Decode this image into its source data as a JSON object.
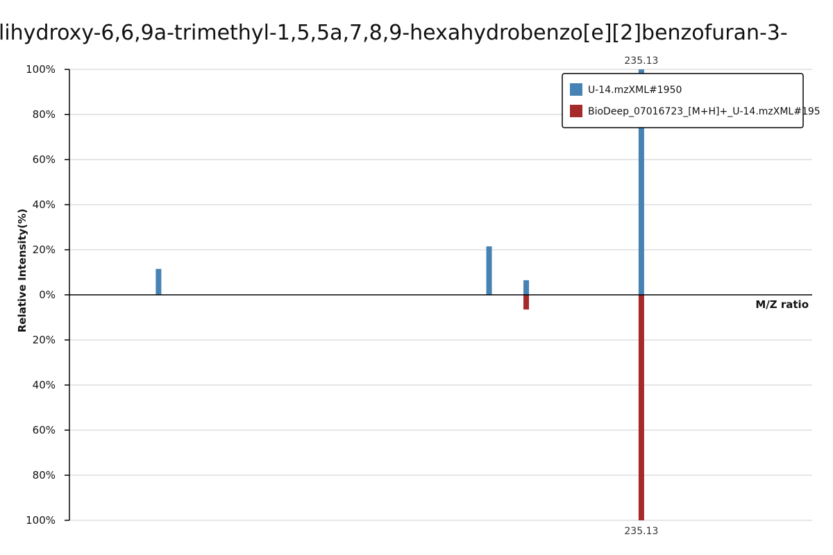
{
  "chart_data": {
    "type": "bar",
    "title": "lihydroxy-6,6,9a-trimethyl-1,5,5a,7,8,9-hexahydrobenzo[e][2]benzofuran-3-",
    "xlabel": "M/Z ratio",
    "ylabel": "Relative Intensity(%)",
    "y_ticks_top": [
      "100%",
      "80%",
      "60%",
      "40%",
      "20%",
      "0%"
    ],
    "y_ticks_bottom": [
      "20%",
      "40%",
      "60%",
      "80%",
      "100%"
    ],
    "ylim": [
      -100,
      100
    ],
    "xlim": [
      0,
      1
    ],
    "grid": true,
    "legend_position": "top-right",
    "series": [
      {
        "name": "U-14.mzXML#1950",
        "color": "#4682b4",
        "direction": "up",
        "x": [
          0.12,
          0.565,
          0.615,
          0.77
        ],
        "values": [
          11.5,
          21.5,
          6.5,
          100
        ]
      },
      {
        "name": "BioDeep_07016723_[M+H]+_U-14.mzXML#195",
        "color": "#a52a2a",
        "direction": "down",
        "x": [
          0.615,
          0.77
        ],
        "values": [
          6.5,
          100
        ]
      }
    ],
    "peak_labels": [
      {
        "series": 0,
        "index": 3,
        "text": "235.13"
      },
      {
        "series": 1,
        "index": 1,
        "text": "235.13"
      }
    ]
  }
}
